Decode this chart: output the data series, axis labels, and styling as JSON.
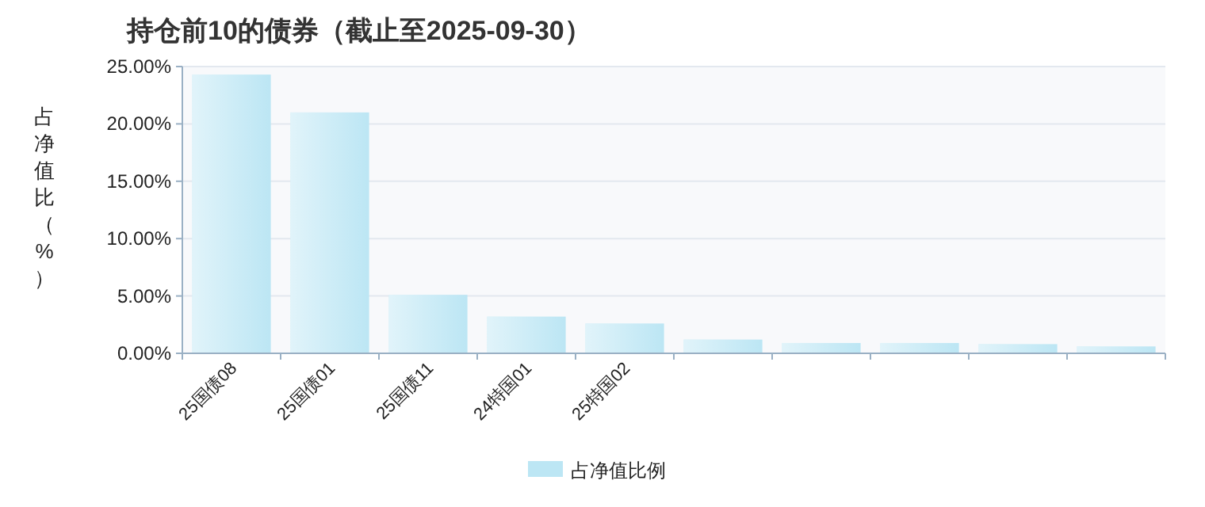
{
  "chart_data": {
    "type": "bar",
    "title": "持仓前10的债券（截止至2025-09-30）",
    "ylabel": "占净值比（%）",
    "categories": [
      "25国债08",
      "25国债01",
      "25国债11",
      "24特国01",
      "25特国02",
      null,
      null,
      null,
      null,
      null
    ],
    "series": [
      {
        "name": "占净值比例",
        "color": "#bce6f4",
        "values": [
          24.3,
          21.0,
          5.1,
          3.2,
          2.6,
          1.2,
          0.9,
          0.9,
          0.8,
          0.6
        ]
      }
    ],
    "ylim": [
      0,
      25
    ],
    "yticks": [
      {
        "value": 0,
        "label": "0.00%"
      },
      {
        "value": 5,
        "label": "5.00%"
      },
      {
        "value": 10,
        "label": "10.00%"
      },
      {
        "value": 15,
        "label": "15.00%"
      },
      {
        "value": 20,
        "label": "20.00%"
      },
      {
        "value": 25,
        "label": "25.00%"
      }
    ],
    "grid": "y",
    "legend": "bottom"
  }
}
